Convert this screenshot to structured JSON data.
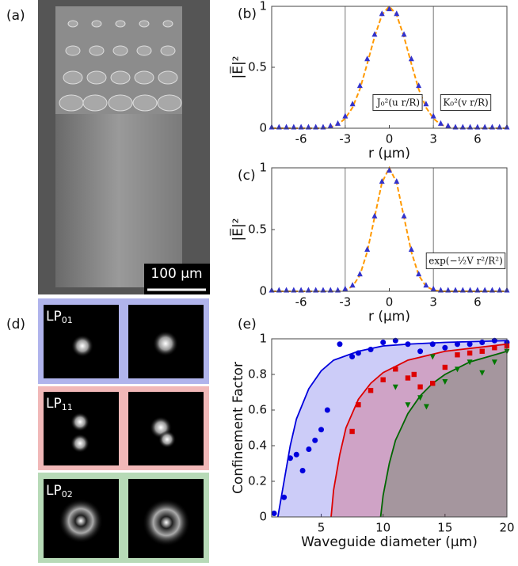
{
  "panels": {
    "a": {
      "label": "(a)",
      "scale_bar": "100 µm"
    },
    "d": {
      "label": "(d)",
      "modes": [
        {
          "name": "LP",
          "sub": "01"
        },
        {
          "name": "LP",
          "sub": "11"
        },
        {
          "name": "LP",
          "sub": "02"
        }
      ]
    }
  },
  "chart_data": [
    {
      "type": "line",
      "panel_label": "(b)",
      "xlabel": "r (µm)",
      "ylabel": "|E̅|²",
      "xlim": [
        -8,
        8
      ],
      "xticks": [
        -6,
        -3,
        0,
        3,
        6
      ],
      "ylim": [
        0,
        1
      ],
      "yticks": [
        0,
        0.5,
        1
      ],
      "vlines": [
        -3,
        3
      ],
      "annotations": [
        "J₀²(u r/R)",
        "K₀²(v r/R)"
      ],
      "x": [
        -8,
        -7.5,
        -7,
        -6.5,
        -6,
        -5.5,
        -5,
        -4.5,
        -4,
        -3.5,
        -3,
        -2.5,
        -2,
        -1.5,
        -1,
        -0.5,
        0,
        0.5,
        1,
        1.5,
        2,
        2.5,
        3,
        3.5,
        4,
        4.5,
        5,
        5.5,
        6,
        6.5,
        7,
        7.5,
        8
      ],
      "series": [
        {
          "color": "#ff9900",
          "dash": true,
          "values": [
            0,
            0,
            0,
            0,
            0,
            0,
            0,
            0,
            0.01,
            0.03,
            0.08,
            0.17,
            0.32,
            0.53,
            0.75,
            0.93,
            1,
            0.93,
            0.75,
            0.53,
            0.32,
            0.17,
            0.08,
            0.03,
            0.01,
            0,
            0,
            0,
            0,
            0,
            0,
            0,
            0
          ]
        },
        {
          "color": "#3333cc",
          "marker": "triangle",
          "values": [
            0.01,
            0.01,
            0.01,
            0.01,
            0.01,
            0.01,
            0.01,
            0.01,
            0.02,
            0.04,
            0.1,
            0.2,
            0.35,
            0.57,
            0.77,
            0.94,
            0.98,
            0.94,
            0.77,
            0.57,
            0.35,
            0.2,
            0.1,
            0.04,
            0.02,
            0.01,
            0.01,
            0.01,
            0.01,
            0.01,
            0.01,
            0.01,
            0.01
          ]
        }
      ]
    },
    {
      "type": "line",
      "panel_label": "(c)",
      "xlabel": "r (µm)",
      "ylabel": "|E̅|²",
      "xlim": [
        -8,
        8
      ],
      "xticks": [
        -6,
        -3,
        0,
        3,
        6
      ],
      "ylim": [
        0,
        1
      ],
      "yticks": [
        0,
        0.5,
        1
      ],
      "vlines": [
        -3,
        3
      ],
      "annotations": [
        "exp(−½V r²/R²)"
      ],
      "x": [
        -8,
        -7.5,
        -7,
        -6.5,
        -6,
        -5.5,
        -5,
        -4.5,
        -4,
        -3.5,
        -3,
        -2.5,
        -2,
        -1.5,
        -1,
        -0.5,
        0,
        0.5,
        1,
        1.5,
        2,
        2.5,
        3,
        3.5,
        4,
        4.5,
        5,
        5.5,
        6,
        6.5,
        7,
        7.5,
        8
      ],
      "series": [
        {
          "color": "#ff9900",
          "dash": true,
          "values": [
            0,
            0,
            0,
            0,
            0,
            0,
            0,
            0,
            0,
            0,
            0.01,
            0.04,
            0.13,
            0.32,
            0.6,
            0.88,
            1,
            0.88,
            0.6,
            0.32,
            0.13,
            0.04,
            0.01,
            0,
            0,
            0,
            0,
            0,
            0,
            0,
            0,
            0,
            0
          ]
        },
        {
          "color": "#3333cc",
          "marker": "triangle",
          "values": [
            0.01,
            0.01,
            0.01,
            0.01,
            0.01,
            0.01,
            0.01,
            0.01,
            0.01,
            0.01,
            0.02,
            0.05,
            0.14,
            0.34,
            0.61,
            0.89,
            0.98,
            0.89,
            0.61,
            0.34,
            0.14,
            0.05,
            0.02,
            0.01,
            0.01,
            0.01,
            0.01,
            0.01,
            0.01,
            0.01,
            0.01,
            0.01,
            0.01
          ]
        }
      ]
    },
    {
      "type": "line",
      "panel_label": "(e)",
      "xlabel": "Waveguide diameter (µm)",
      "ylabel": "Confinement Factor",
      "xlim": [
        1,
        20
      ],
      "xticks": [
        5,
        10,
        15,
        20
      ],
      "ylim": [
        0,
        1
      ],
      "yticks": [
        0,
        0.2,
        0.4,
        0.6,
        0.8,
        1
      ],
      "series": [
        {
          "color": "#0000dd",
          "fill": true,
          "x": [
            1.5,
            2,
            2.5,
            3,
            4,
            5,
            6,
            8,
            10,
            12,
            15,
            20
          ],
          "values": [
            0,
            0.2,
            0.4,
            0.55,
            0.72,
            0.82,
            0.88,
            0.93,
            0.96,
            0.97,
            0.98,
            0.99
          ]
        },
        {
          "color": "#dd0000",
          "fill": true,
          "x": [
            5.8,
            6,
            6.5,
            7,
            8,
            9,
            10,
            12,
            15,
            20
          ],
          "values": [
            0,
            0.15,
            0.35,
            0.5,
            0.66,
            0.75,
            0.81,
            0.88,
            0.93,
            0.97
          ]
        },
        {
          "color": "#006600",
          "fill": true,
          "x": [
            9.8,
            10,
            10.5,
            11,
            12,
            13,
            14,
            15,
            17,
            20
          ],
          "values": [
            0,
            0.12,
            0.3,
            0.43,
            0.58,
            0.68,
            0.75,
            0.8,
            0.87,
            0.93
          ]
        },
        {
          "color": "#0000dd",
          "marker": "circle",
          "x": [
            1.2,
            2,
            2.5,
            3,
            3.5,
            4,
            4.5,
            5,
            5.5,
            6.5,
            7.5,
            8,
            9,
            10,
            11,
            12,
            13,
            14,
            15,
            16,
            17,
            18,
            19,
            20
          ],
          "values": [
            0.02,
            0.11,
            0.33,
            0.35,
            0.26,
            0.38,
            0.43,
            0.49,
            0.6,
            0.97,
            0.9,
            0.92,
            0.94,
            0.98,
            0.99,
            0.97,
            0.93,
            0.97,
            0.95,
            0.97,
            0.97,
            0.98,
            0.99,
            0.98
          ]
        },
        {
          "color": "#dd0000",
          "marker": "square",
          "x": [
            7.5,
            8,
            9,
            10,
            11,
            12,
            12.5,
            13,
            14,
            15,
            16,
            17,
            18,
            19,
            20
          ],
          "values": [
            0.48,
            0.63,
            0.71,
            0.77,
            0.83,
            0.78,
            0.8,
            0.73,
            0.75,
            0.84,
            0.91,
            0.92,
            0.93,
            0.95,
            0.96
          ]
        },
        {
          "color": "#007700",
          "marker": "triangle-down",
          "x": [
            11,
            12,
            13,
            13.5,
            14,
            15,
            16,
            17,
            18,
            19,
            20
          ],
          "values": [
            0.73,
            0.63,
            0.67,
            0.62,
            0.9,
            0.76,
            0.83,
            0.87,
            0.81,
            0.87,
            0.93
          ]
        }
      ]
    }
  ]
}
